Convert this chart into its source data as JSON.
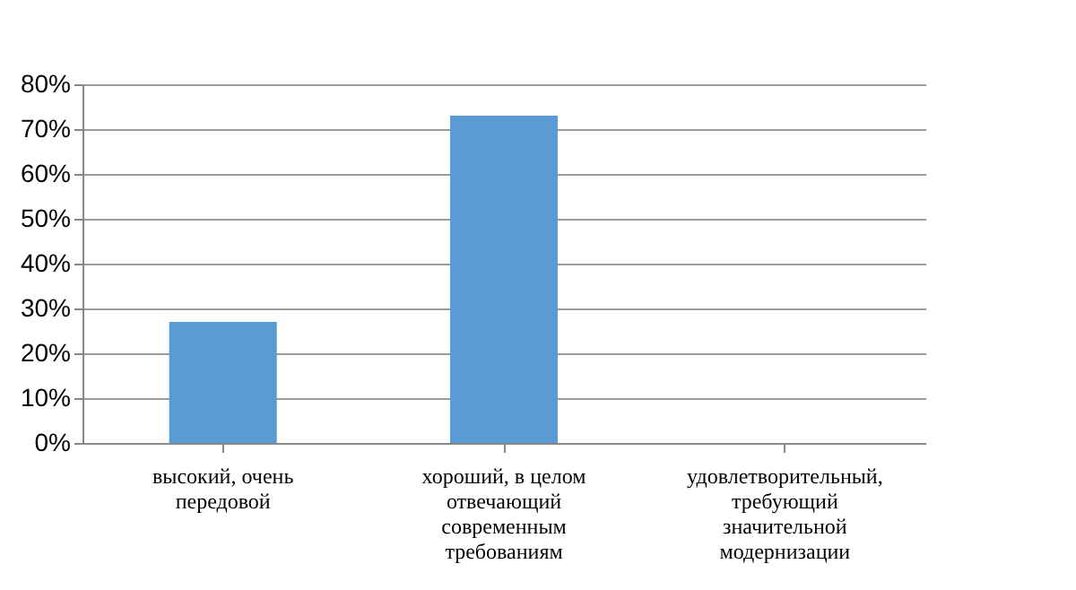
{
  "chart_data": {
    "type": "bar",
    "categories": [
      "высокий, очень передовой",
      "хороший, в целом отвечающий современным требованиям",
      "удовлетворительный, требующий значительной модернизации"
    ],
    "values": [
      27,
      73,
      0
    ],
    "color": "#5b9bd5",
    "ylim": [
      0,
      80
    ],
    "yticks": [
      {
        "value": 0,
        "label": "0%"
      },
      {
        "value": 10,
        "label": "10%"
      },
      {
        "value": 20,
        "label": "20%"
      },
      {
        "value": 30,
        "label": "30%"
      },
      {
        "value": 40,
        "label": "40%"
      },
      {
        "value": 50,
        "label": "50%"
      },
      {
        "value": 60,
        "label": "60%"
      },
      {
        "value": 70,
        "label": "70%"
      },
      {
        "value": 80,
        "label": "80%"
      }
    ],
    "grid": "y"
  }
}
